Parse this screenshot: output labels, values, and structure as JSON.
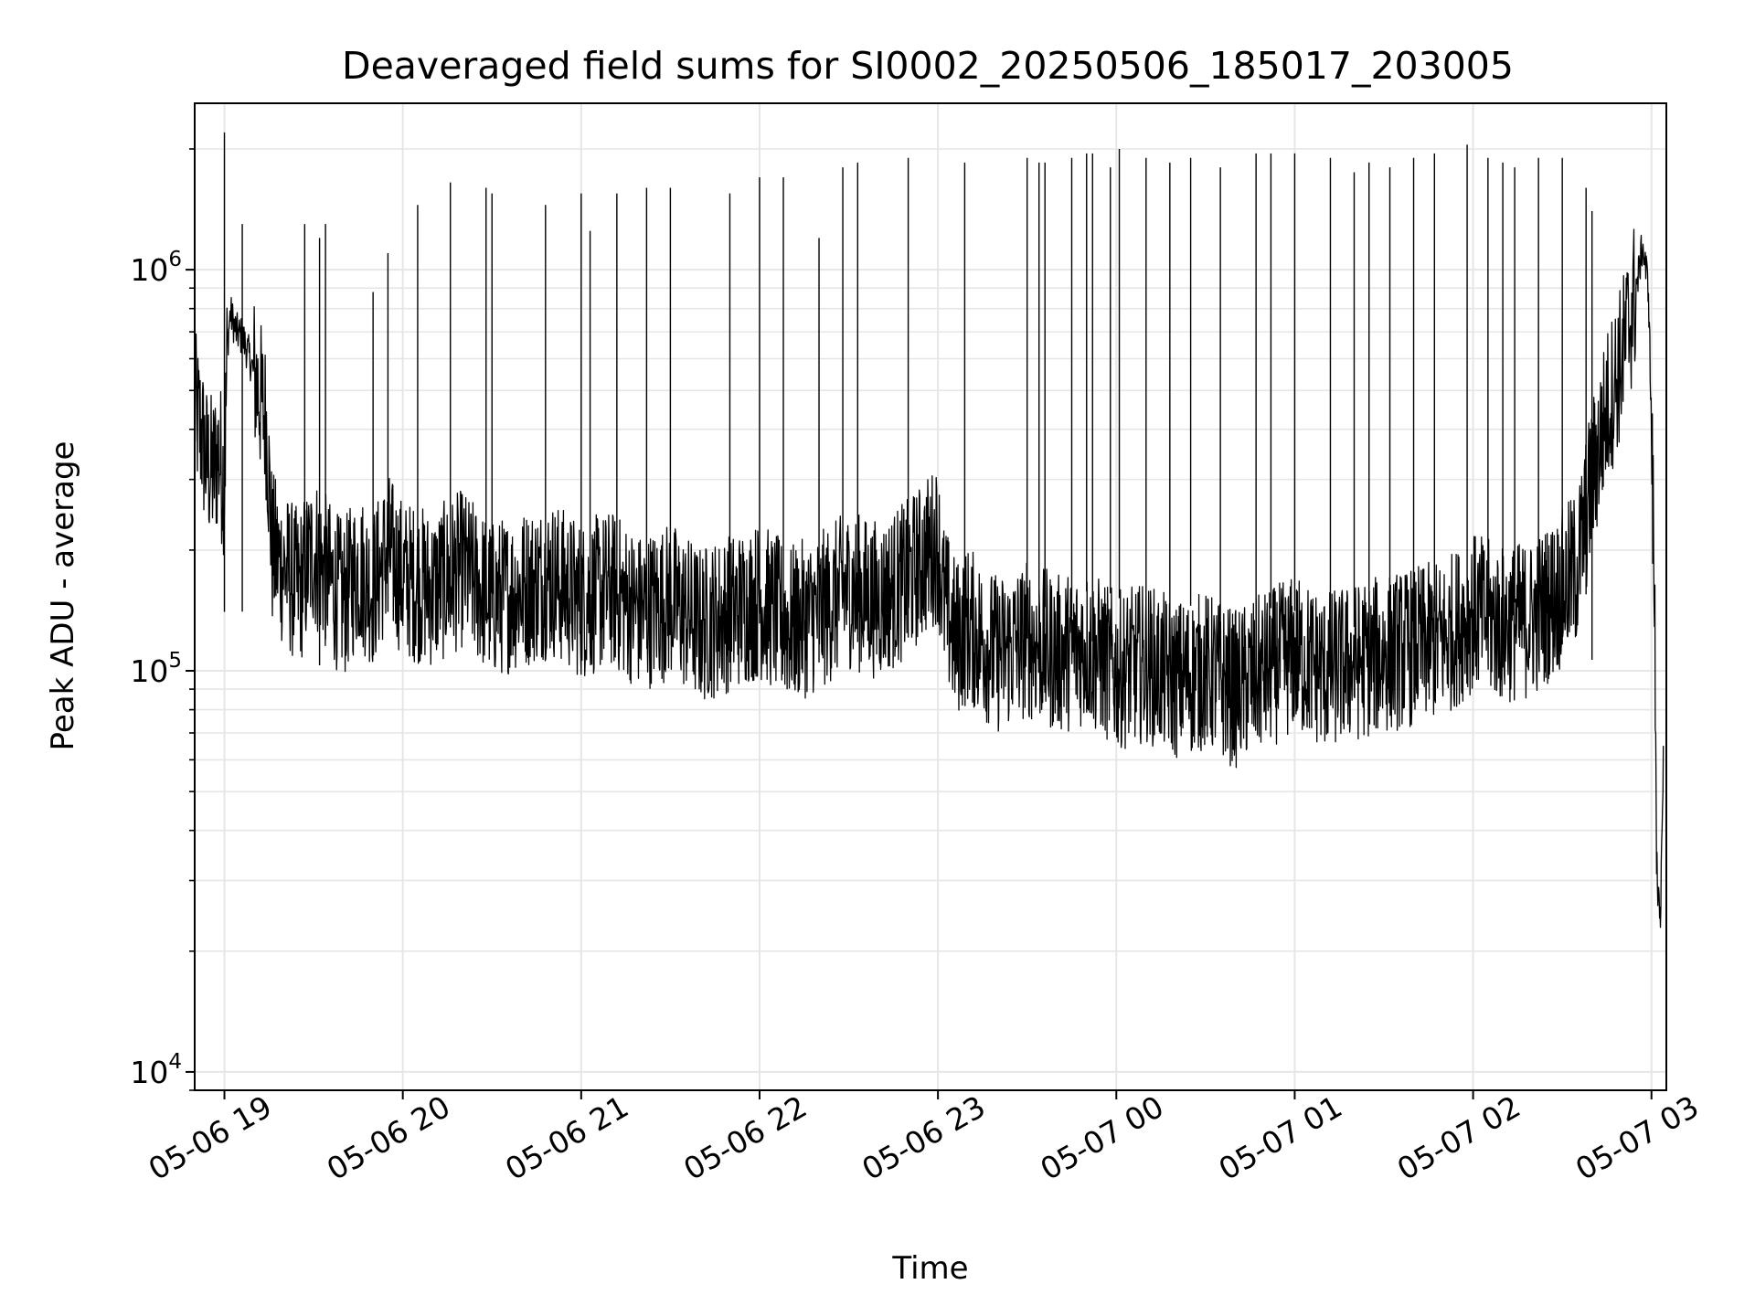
{
  "chart_data": {
    "type": "line",
    "title": "Deaveraged field sums for SI0002_20250506_185017_203005",
    "xlabel": "Time",
    "ylabel": "Peak ADU - average",
    "yscale": "log",
    "ylim": [
      9000,
      2600000
    ],
    "xlim": [
      "2025-05-06 18:50",
      "2025-05-07 03:05"
    ],
    "grid": true,
    "line_color": "#000000",
    "grid_color": "#e6e6e6",
    "x_ticks": [
      {
        "at": "2025-05-06 19:00",
        "label": "05-06 19"
      },
      {
        "at": "2025-05-06 20:00",
        "label": "05-06 20"
      },
      {
        "at": "2025-05-06 21:00",
        "label": "05-06 21"
      },
      {
        "at": "2025-05-06 22:00",
        "label": "05-06 22"
      },
      {
        "at": "2025-05-06 23:00",
        "label": "05-06 23"
      },
      {
        "at": "2025-05-07 00:00",
        "label": "05-07 00"
      },
      {
        "at": "2025-05-07 01:00",
        "label": "05-07 01"
      },
      {
        "at": "2025-05-07 02:00",
        "label": "05-07 02"
      },
      {
        "at": "2025-05-07 03:00",
        "label": "05-07 03"
      }
    ],
    "y_ticks": [
      {
        "value": 10000,
        "base": "10",
        "exp": "4"
      },
      {
        "value": 100000,
        "base": "10",
        "exp": "5"
      },
      {
        "value": 1000000,
        "base": "10",
        "exp": "6"
      }
    ],
    "series": [
      {
        "x": [
          "2025-05-06 18:50",
          "2025-05-06 18:52",
          "2025-05-06 18:54",
          "2025-05-06 18:56",
          "2025-05-06 18:58",
          "2025-05-06 19:00",
          "2025-05-06 19:01",
          "2025-05-06 19:02",
          "2025-05-06 19:04",
          "2025-05-06 19:06",
          "2025-05-06 19:08",
          "2025-05-06 19:10",
          "2025-05-06 19:12",
          "2025-05-06 19:14",
          "2025-05-06 19:15",
          "2025-05-06 19:16",
          "2025-05-06 19:20",
          "2025-05-06 19:25",
          "2025-05-06 19:30",
          "2025-05-06 19:35",
          "2025-05-06 19:40",
          "2025-05-06 19:45",
          "2025-05-06 19:50",
          "2025-05-06 19:55",
          "2025-05-06 20:00",
          "2025-05-06 20:10",
          "2025-05-06 20:20",
          "2025-05-06 20:30",
          "2025-05-06 20:40",
          "2025-05-06 20:50",
          "2025-05-06 21:00",
          "2025-05-06 21:10",
          "2025-05-06 21:20",
          "2025-05-06 21:30",
          "2025-05-06 21:40",
          "2025-05-06 21:50",
          "2025-05-06 22:00",
          "2025-05-06 22:10",
          "2025-05-06 22:20",
          "2025-05-06 22:30",
          "2025-05-06 22:40",
          "2025-05-06 22:50",
          "2025-05-06 23:00",
          "2025-05-06 23:02",
          "2025-05-06 23:06",
          "2025-05-06 23:10",
          "2025-05-06 23:20",
          "2025-05-06 23:30",
          "2025-05-06 23:40",
          "2025-05-06 23:50",
          "2025-05-07 00:00",
          "2025-05-07 00:10",
          "2025-05-07 00:20",
          "2025-05-07 00:30",
          "2025-05-07 00:40",
          "2025-05-07 00:50",
          "2025-05-07 01:00",
          "2025-05-07 01:10",
          "2025-05-07 01:20",
          "2025-05-07 01:30",
          "2025-05-07 01:40",
          "2025-05-07 01:50",
          "2025-05-07 02:00",
          "2025-05-07 02:10",
          "2025-05-07 02:20",
          "2025-05-07 02:30",
          "2025-05-07 02:35",
          "2025-05-07 02:40",
          "2025-05-07 02:45",
          "2025-05-07 02:50",
          "2025-05-07 02:55",
          "2025-05-07 02:57",
          "2025-05-07 02:59",
          "2025-05-07 03:00",
          "2025-05-07 03:01",
          "2025-05-07 03:02",
          "2025-05-07 03:03",
          "2025-05-07 03:04"
        ],
        "y": [
          450000,
          400000,
          330000,
          310000,
          350000,
          300000,
          650000,
          780000,
          700000,
          680000,
          620000,
          550000,
          480000,
          420000,
          300000,
          200000,
          180000,
          160000,
          200000,
          170000,
          150000,
          180000,
          160000,
          200000,
          170000,
          160000,
          180000,
          150000,
          160000,
          170000,
          150000,
          160000,
          140000,
          150000,
          130000,
          140000,
          150000,
          130000,
          140000,
          160000,
          150000,
          170000,
          210000,
          150000,
          120000,
          130000,
          110000,
          120000,
          110000,
          115000,
          100000,
          105000,
          95000,
          100000,
          90000,
          100000,
          110000,
          100000,
          105000,
          110000,
          115000,
          120000,
          140000,
          130000,
          135000,
          160000,
          180000,
          300000,
          450000,
          600000,
          900000,
          1150000,
          900000,
          400000,
          150000,
          30000,
          22000,
          65000
        ]
      }
    ],
    "spikes": {
      "x": [
        "2025-05-06 19:00",
        "2025-05-06 19:06",
        "2025-05-06 19:27",
        "2025-05-06 19:32",
        "2025-05-06 19:34",
        "2025-05-06 19:50",
        "2025-05-06 19:55",
        "2025-05-06 20:05",
        "2025-05-06 20:16",
        "2025-05-06 20:28",
        "2025-05-06 20:30",
        "2025-05-06 20:48",
        "2025-05-06 21:00",
        "2025-05-06 21:03",
        "2025-05-06 21:12",
        "2025-05-06 21:22",
        "2025-05-06 21:30",
        "2025-05-06 21:50",
        "2025-05-06 22:00",
        "2025-05-06 22:08",
        "2025-05-06 22:20",
        "2025-05-06 22:28",
        "2025-05-06 22:33",
        "2025-05-06 22:50",
        "2025-05-06 23:09",
        "2025-05-06 23:30",
        "2025-05-06 23:34",
        "2025-05-06 23:36",
        "2025-05-06 23:45",
        "2025-05-06 23:50",
        "2025-05-06 23:52",
        "2025-05-06 23:58",
        "2025-05-07 00:01",
        "2025-05-07 00:10",
        "2025-05-07 00:18",
        "2025-05-07 00:25",
        "2025-05-07 00:35",
        "2025-05-07 00:47",
        "2025-05-07 00:52",
        "2025-05-07 01:00",
        "2025-05-07 01:12",
        "2025-05-07 01:20",
        "2025-05-07 01:25",
        "2025-05-07 01:32",
        "2025-05-07 01:40",
        "2025-05-07 01:47",
        "2025-05-07 01:58",
        "2025-05-07 02:05",
        "2025-05-07 02:10",
        "2025-05-07 02:14",
        "2025-05-07 02:22",
        "2025-05-07 02:30",
        "2025-05-07 02:38",
        "2025-05-07 02:40"
      ],
      "y": [
        2200000,
        1300000,
        1300000,
        1200000,
        1300000,
        880000,
        1100000,
        1450000,
        1650000,
        1600000,
        1550000,
        1450000,
        1550000,
        1250000,
        1550000,
        1600000,
        1600000,
        1550000,
        1700000,
        1700000,
        1200000,
        1800000,
        1850000,
        1900000,
        1850000,
        1900000,
        1850000,
        1850000,
        1900000,
        1950000,
        1950000,
        1800000,
        2000000,
        1900000,
        1850000,
        1900000,
        1800000,
        1950000,
        1950000,
        1950000,
        1900000,
        1750000,
        1850000,
        1800000,
        1900000,
        1950000,
        2050000,
        1900000,
        1850000,
        1800000,
        1900000,
        1900000,
        1600000,
        1400000
      ]
    }
  }
}
